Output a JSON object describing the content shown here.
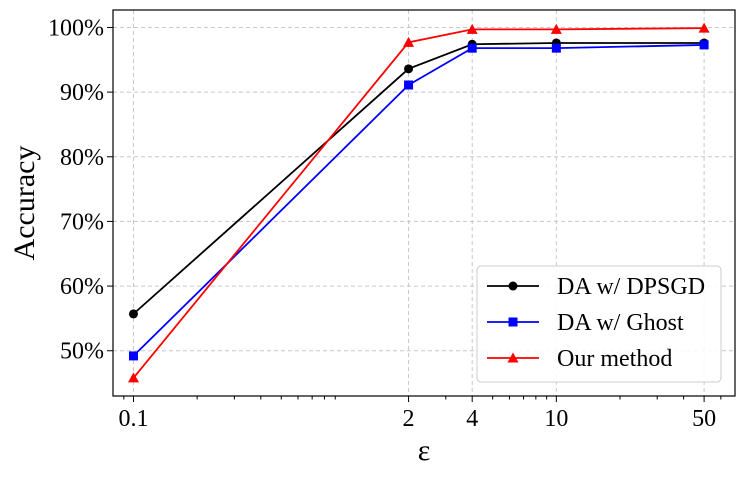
{
  "chart_data": {
    "type": "line",
    "title": "",
    "xlabel": "ε",
    "ylabel": "Accuracy",
    "xscale": "log",
    "x": [
      0.1,
      2,
      4,
      10,
      50
    ],
    "xtick_labels": [
      "0.1",
      "2",
      "4",
      "10",
      "50"
    ],
    "ytick_values": [
      50,
      60,
      70,
      80,
      90,
      100
    ],
    "ytick_labels": [
      "50%",
      "60%",
      "70%",
      "80%",
      "90%",
      "100%"
    ],
    "xlim": [
      0.08,
      70
    ],
    "ylim": [
      43,
      102.7
    ],
    "grid": true,
    "legend_position": "lower-right",
    "series": [
      {
        "name": "DA w/ DPSGD",
        "color": "#000000",
        "marker": "circle",
        "values": [
          55.7,
          93.6,
          97.4,
          97.6,
          97.6
        ]
      },
      {
        "name": "DA w/ Ghost",
        "color": "#0000ff",
        "marker": "square",
        "values": [
          49.2,
          91.1,
          96.8,
          96.8,
          97.3
        ]
      },
      {
        "name": "Our method",
        "color": "#ff0000",
        "marker": "triangle",
        "values": [
          45.8,
          97.7,
          99.7,
          99.7,
          99.9
        ]
      }
    ]
  }
}
